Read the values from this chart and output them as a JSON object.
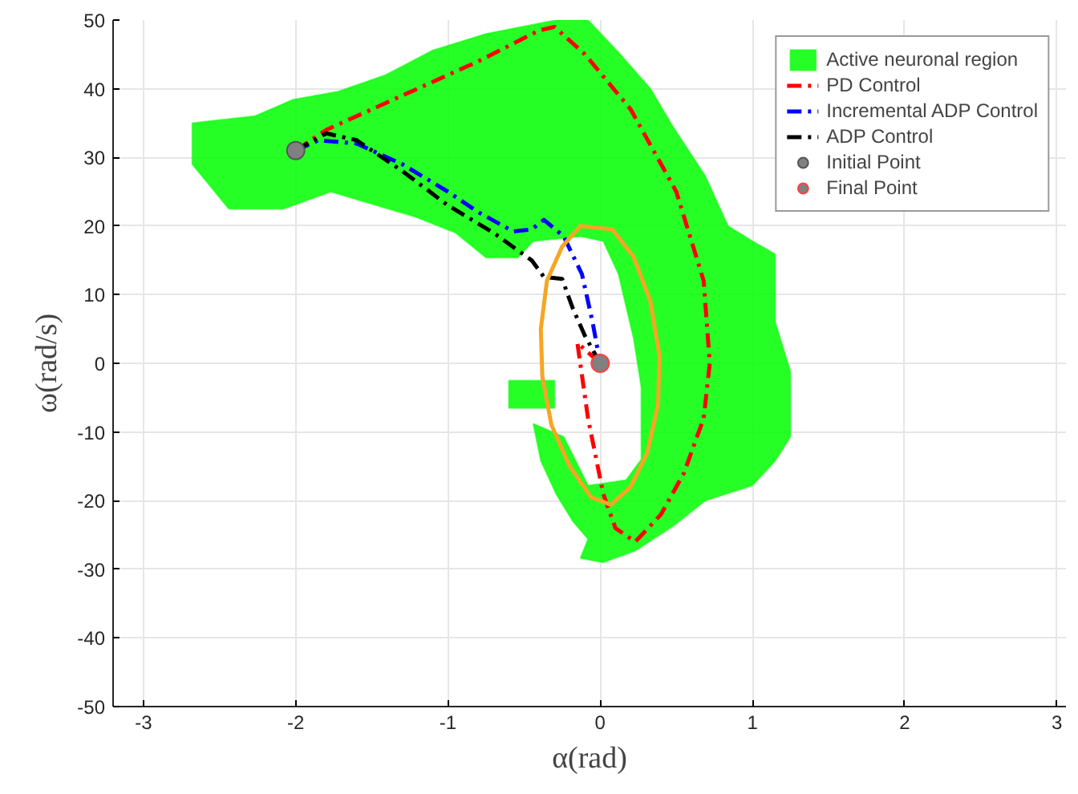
{
  "chart_data": {
    "type": "line",
    "xlabel": "α(rad)",
    "ylabel": "ω(rad/s)",
    "xlim": [
      -3.2,
      3.06
    ],
    "ylim": [
      -50,
      50
    ],
    "xticks": [
      -3,
      -2,
      -1,
      0,
      1,
      2,
      3
    ],
    "yticks": [
      -50,
      -40,
      -30,
      -20,
      -10,
      0,
      10,
      20,
      30,
      40,
      50
    ],
    "grid": true,
    "legend": "top right",
    "line_style": "dashed",
    "series": [
      {
        "name": "Active neuronal region",
        "type": "area",
        "color": "#00ff00",
        "x": [
          -2.68,
          -2.68,
          -2.44,
          -2.08,
          -1.77,
          -1.47,
          -1.21,
          -0.95,
          -0.75,
          -0.54,
          -0.44,
          -0.13,
          0.02,
          0.12,
          0.22,
          0.27,
          0.27,
          0.17,
          -0.08,
          -0.24,
          -0.44,
          -0.39,
          -0.29,
          -0.18,
          -0.08,
          -0.13,
          0.02,
          0.23,
          0.48,
          0.69,
          1.0,
          1.15,
          1.25,
          1.25,
          1.15,
          1.15,
          1.0,
          0.84,
          0.69,
          0.48,
          0.33,
          0.12,
          -0.08,
          -0.29,
          -0.75,
          -1.1,
          -1.41,
          -1.72,
          -2.02,
          -2.27
        ],
        "values": [
          35,
          29,
          22.5,
          22.5,
          25,
          23,
          21.3,
          19,
          15.4,
          15.4,
          17.8,
          18.5,
          17.8,
          13,
          3.6,
          -3.5,
          -14,
          -17,
          -17.8,
          -10.7,
          -8.8,
          -14.2,
          -19,
          -23,
          -25.6,
          -28.4,
          -29,
          -27.3,
          -23.7,
          -20,
          -17.8,
          -14.2,
          -10.7,
          -1.2,
          6,
          15.9,
          17.8,
          20,
          27.3,
          34.4,
          40,
          45.3,
          50,
          50,
          48,
          45.6,
          42,
          39.6,
          38.4,
          36
        ]
      },
      {
        "type": "area",
        "color": "#00ff00",
        "x": [
          -0.6,
          -0.3,
          -0.3,
          -0.6
        ],
        "values": [
          -2.5,
          -2.5,
          -6.5,
          -6.5
        ]
      },
      {
        "name": "PD Control",
        "color": "#ff0000",
        "x": [
          -2,
          -1.8,
          -1.3,
          -0.8,
          -0.4,
          -0.3,
          -0.1,
          0.2,
          0.5,
          0.68,
          0.72,
          0.68,
          0.55,
          0.4,
          0.23,
          0.1,
          0.02,
          -0.08,
          -0.15,
          0
        ],
        "values": [
          31,
          34,
          39,
          44,
          48.5,
          49,
          45,
          37,
          25,
          12,
          0,
          -8,
          -16,
          -22,
          -26,
          -24,
          -19,
          -8,
          3,
          0
        ]
      },
      {
        "name": "Incremental ADP Control",
        "color": "#0000ff",
        "x": [
          -2,
          -1.85,
          -1.6,
          -1.3,
          -1.0,
          -0.8,
          -0.57,
          -0.45,
          -0.37,
          -0.24,
          -0.12,
          -0.05,
          0
        ],
        "values": [
          31,
          32.5,
          32,
          29,
          25,
          22,
          19.2,
          19.5,
          20.9,
          18.5,
          13,
          6,
          0
        ]
      },
      {
        "name": "ADP Control",
        "color": "#000000",
        "x": [
          -2,
          -1.8,
          -1.6,
          -1.3,
          -1.0,
          -0.7,
          -0.45,
          -0.37,
          -0.25,
          -0.18,
          -0.1,
          0
        ],
        "values": [
          31,
          33.5,
          32.5,
          28,
          23,
          19,
          15,
          12.6,
          12.3,
          8,
          4,
          0
        ]
      },
      {
        "type": "line",
        "line_style": "solid",
        "color": "#f5a623",
        "x": [
          -0.13,
          -0.25,
          -0.35,
          -0.39,
          -0.38,
          -0.32,
          -0.2,
          -0.06,
          0.07,
          0.2,
          0.31,
          0.38,
          0.39,
          0.33,
          0.22,
          0.08,
          -0.13,
          -0.19
        ],
        "values": [
          20,
          17,
          12,
          5,
          -2,
          -9,
          -15,
          -19.5,
          -20.6,
          -18,
          -13,
          -6,
          1,
          9,
          15.5,
          19.5,
          20,
          18.5
        ]
      },
      {
        "name": "Initial Point",
        "type": "scatter",
        "marker": "circle",
        "color": "#808080",
        "x": [
          -2
        ],
        "values": [
          31
        ]
      },
      {
        "name": "Final Point",
        "type": "scatter",
        "marker": "circle",
        "color": "#808080",
        "x": [
          0
        ],
        "values": [
          0
        ]
      }
    ]
  }
}
